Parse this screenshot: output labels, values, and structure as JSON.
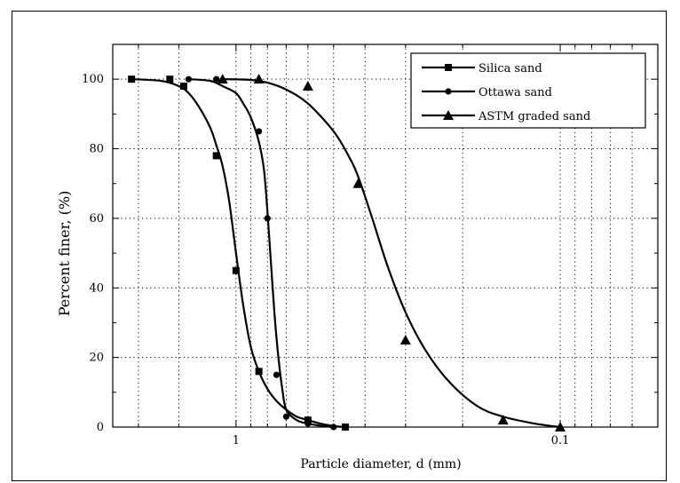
{
  "chart_data": {
    "type": "scatter",
    "title": "",
    "xlabel": "Particle diameter, d (mm)",
    "ylabel": "Percent finer, (%)",
    "x_scale": "log",
    "x_reversed": true,
    "xlim": [
      2.4,
      0.05
    ],
    "ylim": [
      0,
      110
    ],
    "x_ticks": [
      1,
      0.1
    ],
    "x_tick_labels": [
      "1",
      "0.1"
    ],
    "y_ticks": [
      0,
      20,
      40,
      60,
      80,
      100
    ],
    "y_tick_labels": [
      "0",
      "20",
      "40",
      "60",
      "80",
      "100"
    ],
    "grid": "dotted",
    "legend_position": "top-right",
    "series": [
      {
        "name": "Silica sand",
        "marker": "square",
        "x": [
          2.1,
          1.6,
          1.45,
          1.15,
          1.0,
          0.85,
          0.6,
          0.46
        ],
        "y": [
          100,
          100,
          98,
          78,
          45,
          16,
          2,
          0
        ],
        "curve_x": [
          2.1,
          1.7,
          1.5,
          1.4,
          1.3,
          1.2,
          1.15,
          1.1,
          1.05,
          1.0,
          0.95,
          0.9,
          0.85,
          0.8,
          0.75,
          0.7,
          0.65,
          0.6,
          0.55,
          0.5,
          0.46
        ],
        "curve_y": [
          100,
          99.5,
          98,
          96,
          92,
          86,
          81,
          75,
          65,
          50,
          35,
          23,
          16,
          11,
          7.5,
          5,
          3,
          2,
          1,
          0.3,
          0
        ]
      },
      {
        "name": "Ottawa sand",
        "marker": "circle",
        "x": [
          1.4,
          1.15,
          0.85,
          0.8,
          0.75,
          0.7,
          0.6,
          0.5
        ],
        "y": [
          100,
          100,
          85,
          60,
          15,
          3,
          1,
          0
        ],
        "curve_x": [
          1.4,
          1.2,
          1.1,
          1.0,
          0.95,
          0.9,
          0.85,
          0.82,
          0.8,
          0.78,
          0.76,
          0.74,
          0.72,
          0.7,
          0.65,
          0.6,
          0.55,
          0.5
        ],
        "curve_y": [
          100,
          99.5,
          98,
          96,
          93,
          89,
          82,
          74,
          62,
          47,
          32,
          20,
          11,
          5,
          2,
          1,
          0.4,
          0
        ]
      },
      {
        "name": "ASTM graded sand",
        "marker": "triangle",
        "x": [
          1.1,
          0.85,
          0.6,
          0.42,
          0.3,
          0.15,
          0.1
        ],
        "y": [
          100,
          100,
          98,
          70,
          25,
          2,
          0
        ],
        "curve_x": [
          1.1,
          0.9,
          0.8,
          0.7,
          0.6,
          0.5,
          0.45,
          0.42,
          0.38,
          0.34,
          0.3,
          0.26,
          0.22,
          0.18,
          0.15,
          0.12,
          0.1
        ],
        "curve_y": [
          100,
          99.8,
          99,
          97,
          93,
          85,
          78,
          72,
          60,
          46,
          33,
          22,
          13,
          6,
          3,
          1,
          0
        ]
      }
    ]
  }
}
